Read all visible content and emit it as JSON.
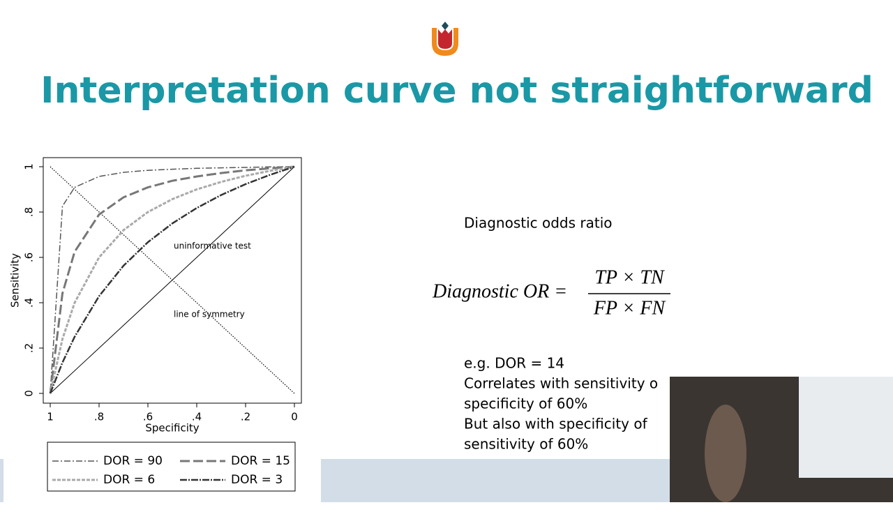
{
  "header": {
    "title": "Interpretation curve not straightforward"
  },
  "chart_data": {
    "type": "line",
    "xlabel": "Specificity",
    "ylabel": "Sensitivity",
    "x": [
      1,
      0.95,
      0.9,
      0.8,
      0.7,
      0.6,
      0.5,
      0.4,
      0.3,
      0.2,
      0.1,
      0
    ],
    "xlim": [
      1,
      0
    ],
    "ylim": [
      0,
      1
    ],
    "xticks": [
      {
        "value": 1,
        "label": "1"
      },
      {
        "value": 0.8,
        "label": ".8"
      },
      {
        "value": 0.6,
        "label": ".6"
      },
      {
        "value": 0.4,
        "label": ".4"
      },
      {
        "value": 0.2,
        "label": ".2"
      },
      {
        "value": 0,
        "label": "0"
      }
    ],
    "yticks": [
      {
        "value": 0,
        "label": "0"
      },
      {
        "value": 0.2,
        "label": ".2"
      },
      {
        "value": 0.4,
        "label": ".4"
      },
      {
        "value": 0.6,
        "label": ".6"
      },
      {
        "value": 0.8,
        "label": ".8"
      },
      {
        "value": 1,
        "label": "1"
      }
    ],
    "annotations": [
      "uninformative test",
      "line of symmetry"
    ],
    "series": [
      {
        "name": "DOR = 90",
        "color": "#555555",
        "dash": "9 3 2 3",
        "width": 1.5,
        "values": [
          0,
          0.826,
          0.909,
          0.957,
          0.975,
          0.984,
          0.989,
          0.993,
          0.995,
          0.997,
          0.999,
          1
        ]
      },
      {
        "name": "DOR = 15",
        "color": "#777777",
        "dash": "14 5",
        "width": 3,
        "values": [
          0,
          0.441,
          0.625,
          0.789,
          0.865,
          0.909,
          0.938,
          0.957,
          0.972,
          0.984,
          0.993,
          1
        ]
      },
      {
        "name": "DOR = 6",
        "color": "#aaaaaa",
        "dash": "5 2",
        "width": 3,
        "values": [
          0,
          0.24,
          0.4,
          0.6,
          0.72,
          0.8,
          0.857,
          0.9,
          0.933,
          0.96,
          0.982,
          1
        ]
      },
      {
        "name": "DOR = 3",
        "color": "#333333",
        "dash": "10 2 2 2",
        "width": 2.5,
        "values": [
          0,
          0.136,
          0.25,
          0.429,
          0.563,
          0.667,
          0.75,
          0.818,
          0.875,
          0.923,
          0.964,
          1
        ]
      }
    ]
  },
  "content": {
    "heading": "Diagnostic odds ratio",
    "formula_lhs": "Diagnostic OR =",
    "formula_num": "TP × TN",
    "formula_den": "FP × FN",
    "lines": [
      "e.g. DOR = 14",
      "Correlates with sensitivity o",
      "specificity of 60%",
      "But also with specificity of",
      "sensitivity of 60%"
    ]
  }
}
